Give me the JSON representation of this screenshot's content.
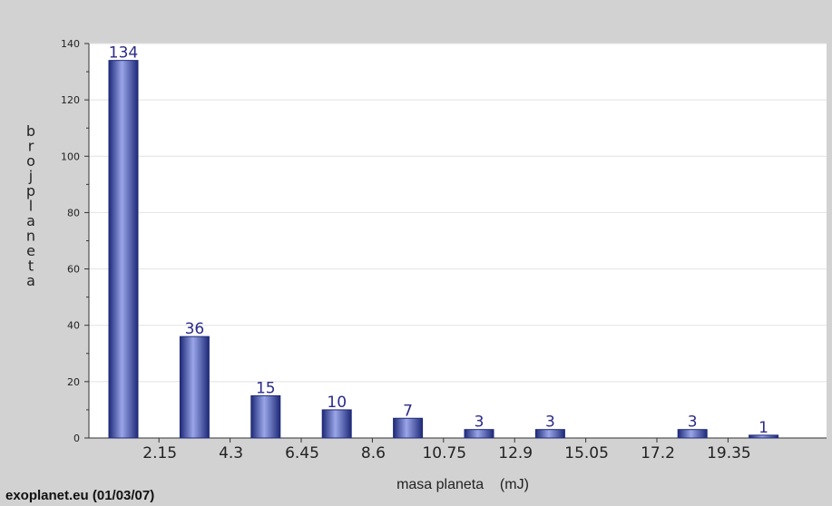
{
  "source_credit": "exoplanet.eu (01/03/07)",
  "colors": {
    "background": "#d2d2d2",
    "plot_background": "#ffffff",
    "bar_dark": "#1e2a78",
    "bar_light": "#9aa6e8",
    "label": "#2b2b8a",
    "grid": "#e2e2e2"
  },
  "chart_data": {
    "type": "bar",
    "title": "",
    "xlabel": "masa planeta    (mJ)",
    "ylabel": "broj planeta",
    "ylim": [
      0,
      140
    ],
    "y_ticks": [
      "0",
      "20",
      "40",
      "60",
      "80",
      "100",
      "120",
      "140"
    ],
    "x_tick_labels": [
      "2.15",
      "4.3",
      "6.45",
      "8.6",
      "10.75",
      "12.9",
      "15.05",
      "17.2",
      "19.35"
    ],
    "values": [
      134,
      36,
      15,
      10,
      7,
      3,
      3,
      0,
      3,
      1
    ],
    "data_labels": [
      "134",
      "36",
      "15",
      "10",
      "7",
      "3",
      "3",
      "",
      "3",
      "1"
    ],
    "grid": true
  }
}
